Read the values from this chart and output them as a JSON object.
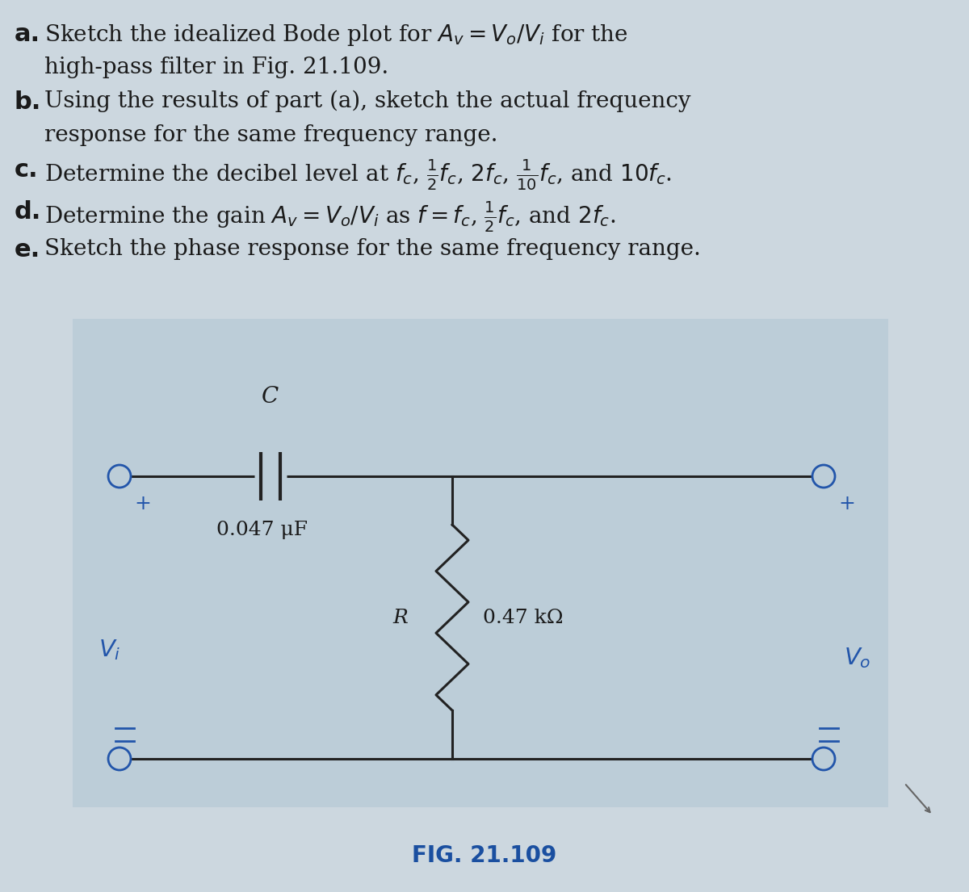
{
  "bg_color": "#ccd7df",
  "text_color": "#1a1a1a",
  "fig_caption": "FIG. 21.109",
  "fig_caption_color": "#1a4fa0",
  "circuit_bg_color": "#bccdd8",
  "wire_color": "#222222",
  "terminal_color": "#2255aa",
  "C_label": "C",
  "C_value": "0.047 μF",
  "R_label": "R",
  "R_value": "0.47 kΩ",
  "Vi_label": "V_i",
  "Vo_label": "V_o"
}
